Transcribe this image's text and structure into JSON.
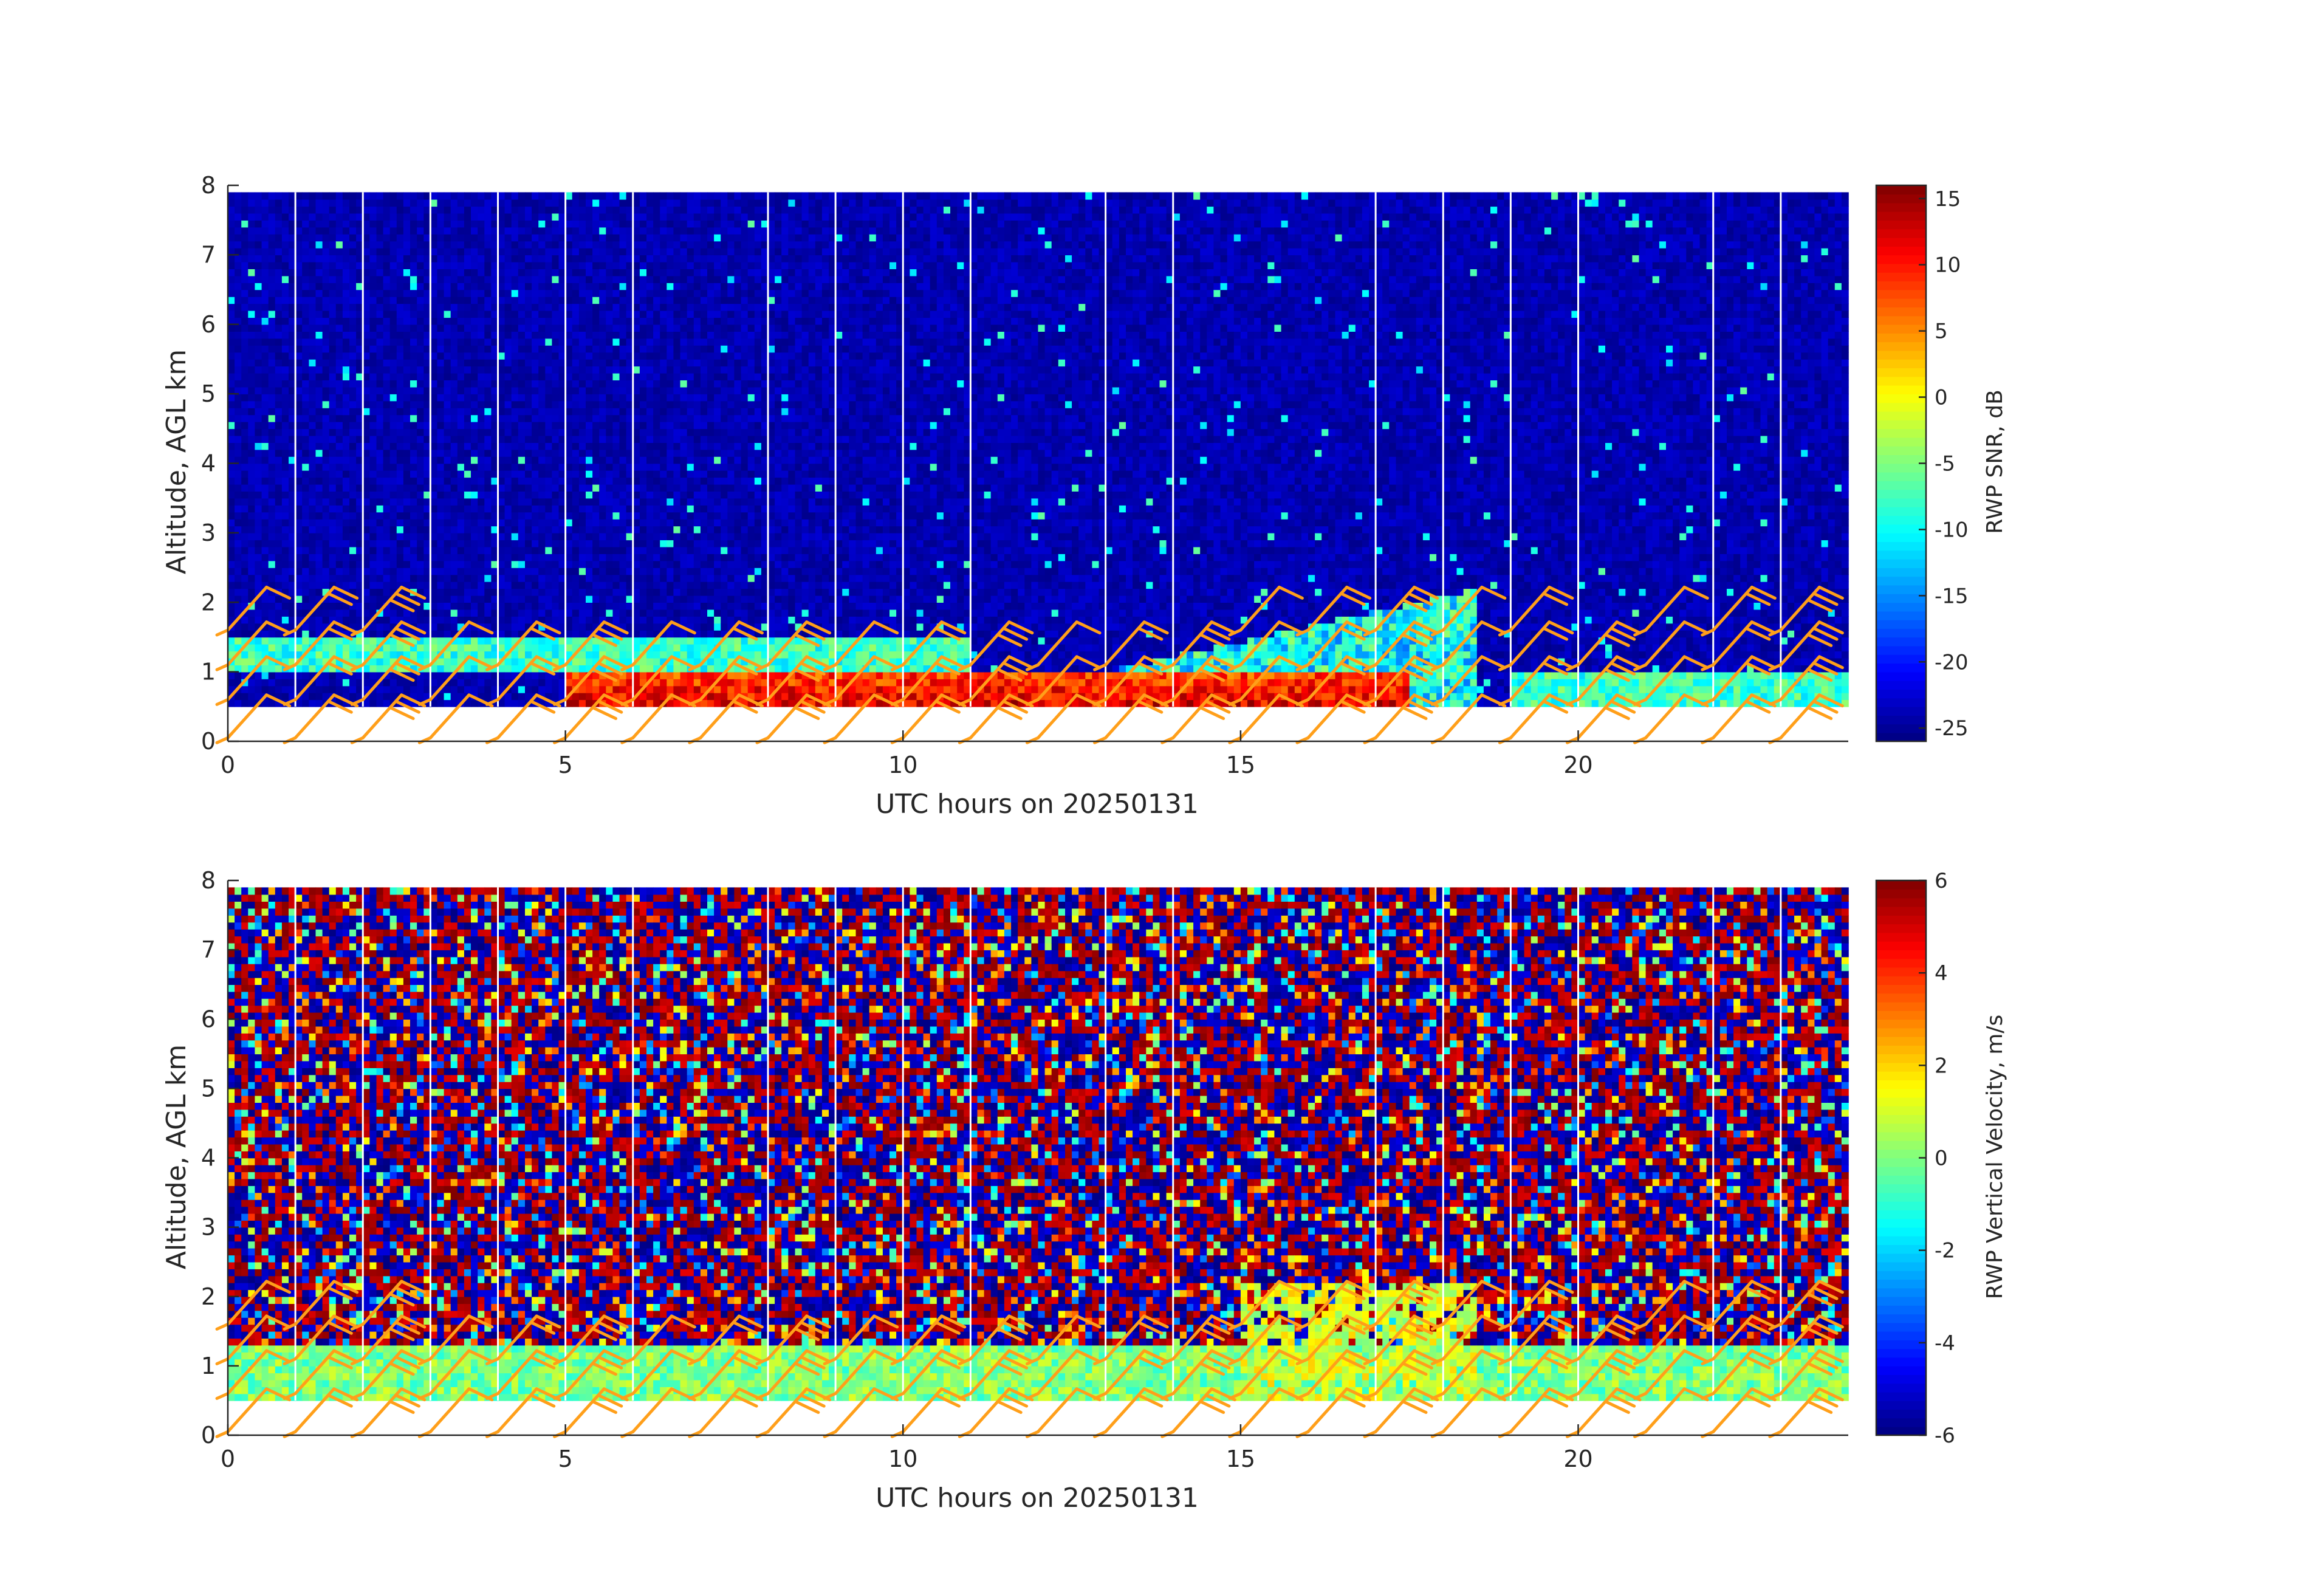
{
  "chart_data": [
    {
      "type": "heatmap",
      "title": "",
      "xlabel": "UTC hours on 20250131",
      "ylabel": "Altitude, AGL km",
      "xlim": [
        0,
        24
      ],
      "ylim": [
        0,
        8
      ],
      "xticks": [
        0,
        5,
        10,
        15,
        20
      ],
      "yticks": [
        0,
        1,
        2,
        3,
        4,
        5,
        6,
        7,
        8
      ],
      "data_altitude_range_km": [
        0.5,
        7.9
      ],
      "colormap": "jet",
      "colorbar": {
        "label": "RWP SNR, dB",
        "range": [
          -26,
          16
        ],
        "ticks": [
          -25,
          -20,
          -15,
          -10,
          -5,
          0,
          5,
          10,
          15
        ]
      },
      "background_value": -24,
      "features": [
        {
          "name": "strong-echo-layer",
          "x": [
            5,
            17.5
          ],
          "altitude_km": [
            0.5,
            1.0
          ],
          "snr_db": 12
        },
        {
          "name": "elevated-echo-layer",
          "x": [
            0,
            11
          ],
          "altitude_km": [
            1.0,
            1.5
          ],
          "snr_db": -8
        },
        {
          "name": "growing-echo-top",
          "x": [
            13,
            18.5
          ],
          "altitude_km": [
            0.5,
            2.2
          ],
          "snr_db": -10
        },
        {
          "name": "afternoon-weak-layer",
          "x": [
            19,
            24
          ],
          "altitude_km": [
            0.5,
            1.0
          ],
          "snr_db": -8
        }
      ],
      "data_gaps_hours": [
        1,
        2,
        3,
        4,
        5,
        6,
        8,
        9,
        10,
        11,
        13,
        14,
        17,
        18,
        19,
        20,
        22,
        23
      ],
      "wind_barbs": "overlaid, hourly, altitudes 0-2.6 km"
    },
    {
      "type": "heatmap",
      "title": "",
      "xlabel": "UTC hours on 20250131",
      "ylabel": "Altitude, AGL km",
      "xlim": [
        0,
        24
      ],
      "ylim": [
        0,
        8
      ],
      "xticks": [
        0,
        5,
        10,
        15,
        20
      ],
      "yticks": [
        0,
        1,
        2,
        3,
        4,
        5,
        6,
        7,
        8
      ],
      "data_altitude_range_km": [
        0.5,
        7.9
      ],
      "colormap": "jet",
      "colorbar": {
        "label": "RWP Vertical Velocity, m/s",
        "range": [
          -6,
          6
        ],
        "ticks": [
          -6,
          -4,
          -2,
          0,
          2,
          4,
          6
        ]
      },
      "background": "noise, values spread across -6 to 6",
      "features": [
        {
          "name": "boundary-layer-signal",
          "x": [
            0,
            24
          ],
          "altitude_km": [
            0.5,
            1.3
          ],
          "velocity_ms": 0
        },
        {
          "name": "daytime-updraft-region",
          "x": [
            15,
            18.5
          ],
          "altitude_km": [
            0.5,
            2.2
          ],
          "velocity_ms": 1
        }
      ],
      "data_gaps_hours": [
        1,
        2,
        3,
        4,
        5,
        6,
        8,
        9,
        10,
        11,
        13,
        14,
        17,
        18,
        19,
        20,
        22,
        23
      ],
      "wind_barbs": "overlaid, hourly, altitudes 0-2.6 km"
    }
  ],
  "colors": {
    "barb": "#ff9f1a",
    "axes": "#262626"
  }
}
